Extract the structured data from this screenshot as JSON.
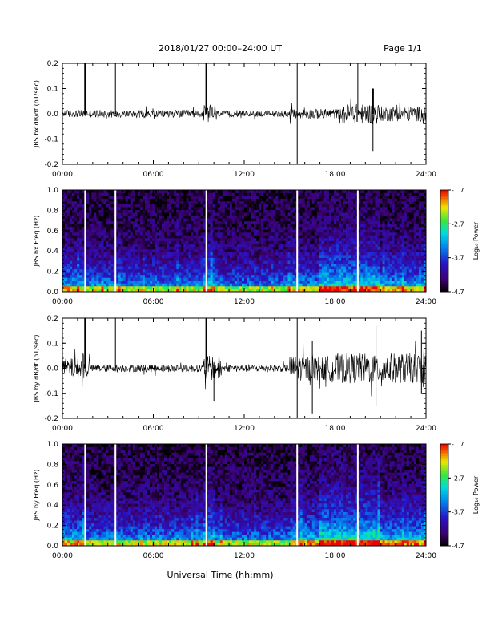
{
  "header": {
    "title": "2018/01/27  00:00–24:00 UT",
    "page": "Page 1/1"
  },
  "footer": {
    "xlabel": "Universal Time (hh:mm)"
  },
  "chart_data": [
    {
      "type": "line",
      "ylabel": "JBS bx dB/dt (nT/sec)",
      "xlim": [
        0,
        24
      ],
      "ylim": [
        -0.2,
        0.2
      ],
      "x_ticks": [
        "00:00",
        "06:00",
        "12:00",
        "18:00",
        "24:00"
      ],
      "y_ticks": [
        "0.2",
        "0.1",
        "0.0",
        "-0.1",
        "-0.2"
      ],
      "baseline": 0.0,
      "noise_segments": [
        {
          "x": [
            0.0,
            9.3
          ],
          "amp": 0.015
        },
        {
          "x": [
            9.3,
            10.2
          ],
          "amp": 0.035
        },
        {
          "x": [
            10.2,
            15.0
          ],
          "amp": 0.012
        },
        {
          "x": [
            15.0,
            18.5
          ],
          "amp": 0.02
        },
        {
          "x": [
            18.5,
            21.0
          ],
          "amp": 0.04
        },
        {
          "x": [
            21.0,
            24.0
          ],
          "amp": 0.03
        }
      ],
      "spikes": [
        {
          "x": 1.5,
          "y": 0.2,
          "bold": true
        },
        {
          "x": 3.5,
          "y": 0.2,
          "bold": false
        },
        {
          "x": 9.5,
          "y": 0.2,
          "bold": true
        },
        {
          "x": 15.5,
          "y": 0.2,
          "bold": false
        },
        {
          "x": 15.5,
          "y": -0.2,
          "bold": false
        },
        {
          "x": 19.5,
          "y": 0.2,
          "bold": false
        },
        {
          "x": 20.5,
          "y": 0.1,
          "bold": true
        },
        {
          "x": 20.5,
          "y": -0.15,
          "bold": false
        }
      ]
    },
    {
      "type": "heatmap",
      "ylabel": "JBS bx Freq (Hz)",
      "xlim": [
        0,
        24
      ],
      "ylim": [
        0,
        1.0
      ],
      "x_ticks": [
        "00:00",
        "06:00",
        "12:00",
        "18:00",
        "24:00"
      ],
      "y_ticks": [
        "1.0",
        "0.8",
        "0.6",
        "0.4",
        "0.2",
        "0.0"
      ],
      "colorbar": {
        "label": "Log₁₀ Power",
        "range": [
          -4.7,
          -1.7
        ],
        "ticks": [
          "-1.7",
          "-2.7",
          "-3.7",
          "-4.7"
        ]
      },
      "gaps": [
        1.5,
        3.5,
        9.5,
        15.5,
        19.5
      ],
      "activity": [
        {
          "x": [
            0.0,
            1.5
          ],
          "level": 0.35
        },
        {
          "x": [
            1.5,
            9.3
          ],
          "level": 0.2
        },
        {
          "x": [
            9.3,
            10.0
          ],
          "level": 0.45
        },
        {
          "x": [
            10.0,
            15.0
          ],
          "level": 0.15
        },
        {
          "x": [
            15.0,
            17.0
          ],
          "level": 0.3
        },
        {
          "x": [
            17.0,
            21.0
          ],
          "level": 0.6
        },
        {
          "x": [
            21.0,
            24.0
          ],
          "level": 0.35
        }
      ]
    },
    {
      "type": "line",
      "ylabel": "JBS by dB/dt (nT/sec)",
      "xlim": [
        0,
        24
      ],
      "ylim": [
        -0.2,
        0.2
      ],
      "x_ticks": [
        "00:00",
        "06:00",
        "12:00",
        "18:00",
        "24:00"
      ],
      "y_ticks": [
        "0.2",
        "0.1",
        "0.0",
        "-0.1",
        "-0.2"
      ],
      "baseline": 0.0,
      "noise_segments": [
        {
          "x": [
            0.0,
            1.8
          ],
          "amp": 0.04
        },
        {
          "x": [
            1.8,
            9.3
          ],
          "amp": 0.015
        },
        {
          "x": [
            9.3,
            10.5
          ],
          "amp": 0.05
        },
        {
          "x": [
            10.5,
            15.0
          ],
          "amp": 0.015
        },
        {
          "x": [
            15.0,
            18.0
          ],
          "amp": 0.05
        },
        {
          "x": [
            18.0,
            24.0
          ],
          "amp": 0.06
        }
      ],
      "spikes": [
        {
          "x": 1.5,
          "y": 0.2,
          "bold": true
        },
        {
          "x": 3.5,
          "y": 0.2,
          "bold": false
        },
        {
          "x": 9.5,
          "y": 0.2,
          "bold": true
        },
        {
          "x": 15.5,
          "y": 0.2,
          "bold": false
        },
        {
          "x": 15.5,
          "y": -0.2,
          "bold": false
        },
        {
          "x": 16.5,
          "y": 0.11,
          "bold": false
        },
        {
          "x": 16.5,
          "y": -0.18,
          "bold": false
        },
        {
          "x": 10.0,
          "y": -0.13,
          "bold": false
        },
        {
          "x": 20.7,
          "y": 0.17,
          "bold": false
        },
        {
          "x": 20.7,
          "y": -0.15,
          "bold": false
        },
        {
          "x": 23.7,
          "y": 0.15,
          "bold": false
        },
        {
          "x": 23.7,
          "y": -0.1,
          "bold": false
        }
      ]
    },
    {
      "type": "heatmap",
      "ylabel": "JBS by Freq (Hz)",
      "xlim": [
        0,
        24
      ],
      "ylim": [
        0,
        1.0
      ],
      "x_ticks": [
        "00:00",
        "06:00",
        "12:00",
        "18:00",
        "24:00"
      ],
      "y_ticks": [
        "1.0",
        "0.8",
        "0.6",
        "0.4",
        "0.2",
        "0.0"
      ],
      "colorbar": {
        "label": "Log₁₀ Power",
        "range": [
          -4.7,
          -1.7
        ],
        "ticks": [
          "-1.7",
          "-2.7",
          "-3.7",
          "-4.7"
        ]
      },
      "gaps": [
        1.5,
        3.5,
        9.5,
        15.5,
        19.5
      ],
      "activity": [
        {
          "x": [
            0.0,
            1.5
          ],
          "level": 0.4
        },
        {
          "x": [
            1.5,
            9.3
          ],
          "level": 0.25
        },
        {
          "x": [
            9.3,
            10.0
          ],
          "level": 0.5
        },
        {
          "x": [
            10.0,
            15.0
          ],
          "level": 0.2
        },
        {
          "x": [
            15.0,
            17.0
          ],
          "level": 0.45
        },
        {
          "x": [
            17.0,
            21.0
          ],
          "level": 0.7
        },
        {
          "x": [
            21.0,
            24.0
          ],
          "level": 0.45
        }
      ]
    }
  ]
}
